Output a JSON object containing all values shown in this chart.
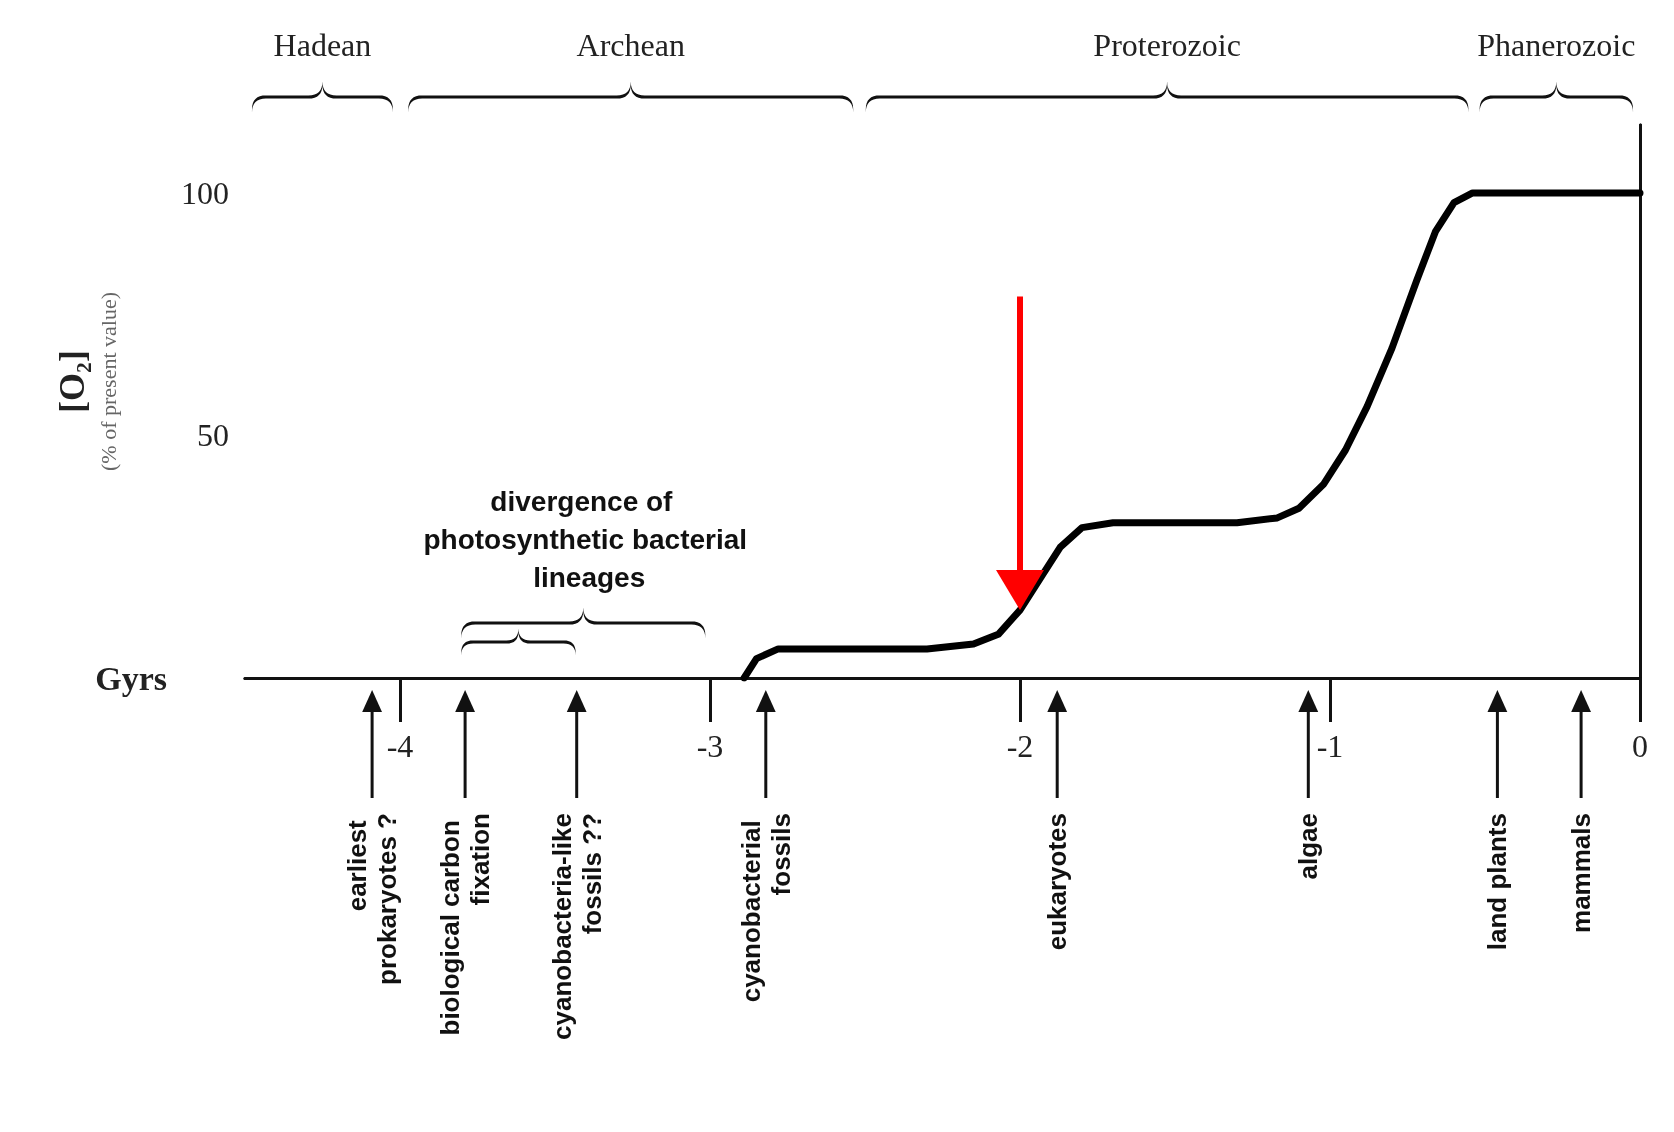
{
  "chart_data": {
    "type": "line",
    "xlabel": "Gyrs",
    "ylabel": "[O₂] (% of present value)",
    "x": [
      -2.89,
      -2.85,
      -2.78,
      -2.6,
      -2.3,
      -2.15,
      -2.07,
      -2.0,
      -1.93,
      -1.87,
      -1.8,
      -1.7,
      -1.5,
      -1.3,
      -1.17,
      -1.1,
      -1.02,
      -0.95,
      -0.88,
      -0.8,
      -0.72,
      -0.66,
      -0.6,
      -0.54,
      -0.4,
      0
    ],
    "series": [
      {
        "color": "#000000",
        "values": [
          0,
          4,
          6,
          6,
          6,
          7,
          9,
          14,
          21,
          27,
          31,
          32,
          32,
          32,
          33,
          35,
          40,
          47,
          56,
          68,
          82,
          92,
          98,
          100,
          100,
          100
        ]
      }
    ],
    "xlim": [
      -4.5,
      0
    ],
    "xticks": [
      -4,
      -3,
      -2,
      -1,
      0
    ],
    "ylim": [
      0,
      114
    ],
    "yticks": [
      50,
      100
    ],
    "grid": false,
    "marker": "none",
    "line_style": "solid",
    "ref_lines": [
      {
        "axis": "x",
        "value": -2,
        "label": null,
        "color": "#ff0000"
      },
      {
        "axis": "x",
        "value": -4.09,
        "label": "earliest prokaryotes ?"
      },
      {
        "axis": "x",
        "value": -3.79,
        "label": "biological carbon fixation"
      },
      {
        "axis": "x",
        "value": -3.43,
        "label": "cyanobacteria-like fossils ??"
      },
      {
        "axis": "x",
        "value": -2.82,
        "label": "cyanobacterial fossils"
      },
      {
        "axis": "x",
        "value": -1.88,
        "label": "eukaryotes"
      },
      {
        "axis": "x",
        "value": -1.07,
        "label": "algae"
      },
      {
        "axis": "x",
        "value": -0.46,
        "label": "land plants"
      },
      {
        "axis": "x",
        "value": -0.19,
        "label": "mammals"
      }
    ],
    "annotations": [
      "Hadean",
      "Archean",
      "Proterozoic",
      "Phanerozoic",
      "divergence of photosynthetic bacterial lineages"
    ]
  }
}
